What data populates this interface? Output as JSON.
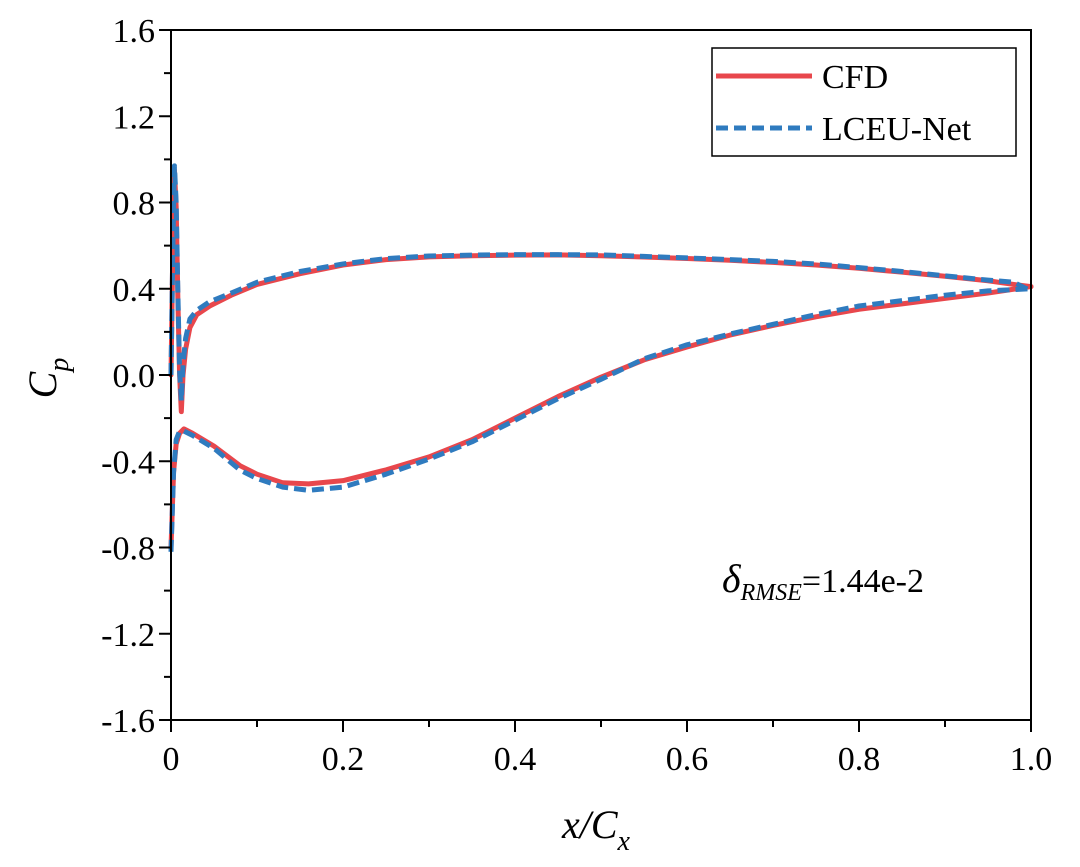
{
  "chart_data": {
    "type": "line",
    "xlabel_main": "x/C",
    "xlabel_sub": "x",
    "ylabel_main": "C",
    "ylabel_sub": "p",
    "xlim": [
      0,
      1.0
    ],
    "ylim": [
      -1.6,
      1.6
    ],
    "x_ticks": [
      0,
      0.2,
      0.4,
      0.6,
      0.8,
      1.0
    ],
    "x_tick_labels": [
      "0",
      "0.2",
      "0.4",
      "0.6",
      "0.8",
      "1.0"
    ],
    "y_ticks": [
      1.6,
      1.2,
      0.8,
      0.4,
      0.0,
      -0.4,
      -0.8,
      -1.2,
      -1.6
    ],
    "y_tick_labels": [
      "1.6",
      "1.2",
      "0.8",
      "0.4",
      "0.0",
      "-0.4",
      "-0.8",
      "-1.2",
      "-1.6"
    ],
    "grid": false,
    "legend_position": "top-right",
    "annotation": {
      "symbol": "δ",
      "subscript": "RMSE",
      "text": "=1.44e-2"
    },
    "series": [
      {
        "name": "CFD",
        "color": "#e8474c",
        "style": "solid",
        "upper": [
          [
            0.0,
            0.0
          ],
          [
            0.002,
            0.55
          ],
          [
            0.004,
            0.95
          ],
          [
            0.006,
            0.78
          ],
          [
            0.008,
            0.35
          ],
          [
            0.01,
            0.0
          ],
          [
            0.012,
            -0.17
          ],
          [
            0.014,
            0.0
          ],
          [
            0.017,
            0.12
          ],
          [
            0.022,
            0.22
          ],
          [
            0.03,
            0.28
          ],
          [
            0.045,
            0.32
          ],
          [
            0.07,
            0.37
          ],
          [
            0.1,
            0.42
          ],
          [
            0.15,
            0.47
          ],
          [
            0.2,
            0.51
          ],
          [
            0.25,
            0.535
          ],
          [
            0.3,
            0.548
          ],
          [
            0.35,
            0.553
          ],
          [
            0.4,
            0.556
          ],
          [
            0.45,
            0.557
          ],
          [
            0.5,
            0.553
          ],
          [
            0.55,
            0.547
          ],
          [
            0.6,
            0.54
          ],
          [
            0.65,
            0.532
          ],
          [
            0.7,
            0.522
          ],
          [
            0.75,
            0.51
          ],
          [
            0.8,
            0.495
          ],
          [
            0.85,
            0.477
          ],
          [
            0.9,
            0.458
          ],
          [
            0.95,
            0.437
          ],
          [
            0.98,
            0.42
          ],
          [
            1.0,
            0.41
          ]
        ],
        "lower": [
          [
            0.0,
            -0.8
          ],
          [
            0.003,
            -0.45
          ],
          [
            0.006,
            -0.32
          ],
          [
            0.01,
            -0.27
          ],
          [
            0.015,
            -0.25
          ],
          [
            0.025,
            -0.27
          ],
          [
            0.05,
            -0.33
          ],
          [
            0.08,
            -0.42
          ],
          [
            0.1,
            -0.46
          ],
          [
            0.13,
            -0.5
          ],
          [
            0.16,
            -0.505
          ],
          [
            0.2,
            -0.49
          ],
          [
            0.25,
            -0.44
          ],
          [
            0.3,
            -0.38
          ],
          [
            0.35,
            -0.3
          ],
          [
            0.4,
            -0.2
          ],
          [
            0.45,
            -0.1
          ],
          [
            0.5,
            -0.01
          ],
          [
            0.55,
            0.07
          ],
          [
            0.6,
            0.13
          ],
          [
            0.65,
            0.185
          ],
          [
            0.7,
            0.23
          ],
          [
            0.75,
            0.27
          ],
          [
            0.8,
            0.305
          ],
          [
            0.85,
            0.33
          ],
          [
            0.9,
            0.355
          ],
          [
            0.95,
            0.38
          ],
          [
            1.0,
            0.41
          ]
        ]
      },
      {
        "name": "LCEU-Net",
        "color": "#2f7bbf",
        "style": "dashed",
        "upper": [
          [
            0.0,
            0.0
          ],
          [
            0.002,
            0.55
          ],
          [
            0.004,
            0.97
          ],
          [
            0.006,
            0.8
          ],
          [
            0.008,
            0.38
          ],
          [
            0.01,
            0.02
          ],
          [
            0.012,
            -0.12
          ],
          [
            0.014,
            0.05
          ],
          [
            0.017,
            0.17
          ],
          [
            0.022,
            0.26
          ],
          [
            0.03,
            0.3
          ],
          [
            0.045,
            0.34
          ],
          [
            0.07,
            0.38
          ],
          [
            0.1,
            0.43
          ],
          [
            0.15,
            0.48
          ],
          [
            0.2,
            0.515
          ],
          [
            0.25,
            0.54
          ],
          [
            0.3,
            0.552
          ],
          [
            0.35,
            0.556
          ],
          [
            0.4,
            0.558
          ],
          [
            0.45,
            0.558
          ],
          [
            0.5,
            0.557
          ],
          [
            0.55,
            0.55
          ],
          [
            0.6,
            0.543
          ],
          [
            0.65,
            0.535
          ],
          [
            0.7,
            0.527
          ],
          [
            0.75,
            0.515
          ],
          [
            0.8,
            0.498
          ],
          [
            0.85,
            0.48
          ],
          [
            0.9,
            0.46
          ],
          [
            0.95,
            0.44
          ],
          [
            0.98,
            0.43
          ],
          [
            1.0,
            0.39
          ]
        ],
        "lower": [
          [
            0.0,
            -0.82
          ],
          [
            0.003,
            -0.45
          ],
          [
            0.006,
            -0.3
          ],
          [
            0.01,
            -0.26
          ],
          [
            0.015,
            -0.26
          ],
          [
            0.025,
            -0.28
          ],
          [
            0.05,
            -0.34
          ],
          [
            0.08,
            -0.44
          ],
          [
            0.1,
            -0.48
          ],
          [
            0.13,
            -0.52
          ],
          [
            0.16,
            -0.535
          ],
          [
            0.2,
            -0.52
          ],
          [
            0.25,
            -0.46
          ],
          [
            0.3,
            -0.39
          ],
          [
            0.35,
            -0.31
          ],
          [
            0.4,
            -0.21
          ],
          [
            0.45,
            -0.11
          ],
          [
            0.5,
            -0.02
          ],
          [
            0.55,
            0.075
          ],
          [
            0.6,
            0.14
          ],
          [
            0.65,
            0.19
          ],
          [
            0.7,
            0.235
          ],
          [
            0.75,
            0.28
          ],
          [
            0.8,
            0.32
          ],
          [
            0.85,
            0.345
          ],
          [
            0.9,
            0.37
          ],
          [
            0.95,
            0.39
          ],
          [
            1.0,
            0.4
          ]
        ]
      }
    ]
  }
}
